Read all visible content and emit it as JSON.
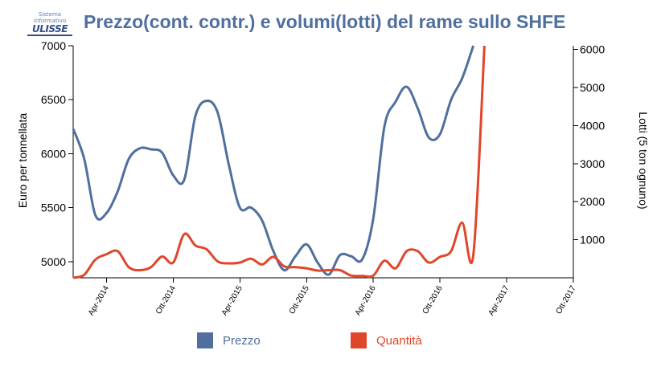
{
  "logo": {
    "line1": "Sistema",
    "line2": "Informativo",
    "line3": "ULISSE"
  },
  "chart_data": {
    "type": "line",
    "title": "Prezzo(cont. contr.) e volumi(lotti) del rame sullo SHFE",
    "ylabel": "Euro per tonnellata",
    "y2label": "Lotti (5 ton ognuno)",
    "ylim": [
      4850,
      7000
    ],
    "y2lim": [
      0,
      6100
    ],
    "yticks": [
      5000,
      5500,
      6000,
      6500,
      7000
    ],
    "y2ticks": [
      1000,
      2000,
      3000,
      4000,
      5000,
      6000
    ],
    "xlim": [
      "2014-01",
      "2017-10"
    ],
    "xticks": [
      {
        "x": "2014-04",
        "label": "Apr-2014"
      },
      {
        "x": "2014-10",
        "label": "Ott-2014"
      },
      {
        "x": "2015-04",
        "label": "Apr-2015"
      },
      {
        "x": "2015-10",
        "label": "Ott-2015"
      },
      {
        "x": "2016-04",
        "label": "Apr-2016"
      },
      {
        "x": "2016-10",
        "label": "Ott-2016"
      },
      {
        "x": "2017-04",
        "label": "Apr-2017"
      },
      {
        "x": "2017-10",
        "label": "Ott-2017"
      }
    ],
    "legend_position": "bottom",
    "series": [
      {
        "name": "Prezzo",
        "axis": "left",
        "color": "#4f6f9e",
        "points": [
          [
            "2014-01",
            6230
          ],
          [
            "2014-02",
            5950
          ],
          [
            "2014-03",
            5430
          ],
          [
            "2014-04",
            5450
          ],
          [
            "2014-05",
            5650
          ],
          [
            "2014-06",
            5950
          ],
          [
            "2014-07",
            6050
          ],
          [
            "2014-08",
            6040
          ],
          [
            "2014-09",
            6010
          ],
          [
            "2014-10",
            5800
          ],
          [
            "2014-11",
            5760
          ],
          [
            "2014-12",
            6350
          ],
          [
            "2015-01",
            6490
          ],
          [
            "2015-02",
            6380
          ],
          [
            "2015-03",
            5900
          ],
          [
            "2015-04",
            5500
          ],
          [
            "2015-05",
            5500
          ],
          [
            "2015-06",
            5380
          ],
          [
            "2015-07",
            5100
          ],
          [
            "2015-08",
            4920
          ],
          [
            "2015-09",
            5050
          ],
          [
            "2015-10",
            5160
          ],
          [
            "2015-11",
            4990
          ],
          [
            "2015-12",
            4880
          ],
          [
            "2016-01",
            5060
          ],
          [
            "2016-02",
            5050
          ],
          [
            "2016-03",
            5020
          ],
          [
            "2016-04",
            5400
          ],
          [
            "2016-05",
            6250
          ],
          [
            "2016-06",
            6480
          ],
          [
            "2016-07",
            6620
          ],
          [
            "2016-08",
            6420
          ],
          [
            "2016-09",
            6150
          ],
          [
            "2016-10",
            6180
          ],
          [
            "2016-11",
            6500
          ],
          [
            "2016-12",
            6700
          ],
          [
            "2017-01",
            7000
          ]
        ]
      },
      {
        "name": "Quantità",
        "axis": "right",
        "color": "#e0462a",
        "points": [
          [
            "2014-01",
            0
          ],
          [
            "2014-02",
            80
          ],
          [
            "2014-03",
            480
          ],
          [
            "2014-04",
            620
          ],
          [
            "2014-05",
            700
          ],
          [
            "2014-06",
            280
          ],
          [
            "2014-07",
            200
          ],
          [
            "2014-08",
            280
          ],
          [
            "2014-09",
            560
          ],
          [
            "2014-10",
            400
          ],
          [
            "2014-11",
            1150
          ],
          [
            "2014-12",
            850
          ],
          [
            "2015-01",
            750
          ],
          [
            "2015-02",
            430
          ],
          [
            "2015-03",
            380
          ],
          [
            "2015-04",
            400
          ],
          [
            "2015-05",
            500
          ],
          [
            "2015-06",
            350
          ],
          [
            "2015-07",
            550
          ],
          [
            "2015-08",
            300
          ],
          [
            "2015-09",
            280
          ],
          [
            "2015-10",
            250
          ],
          [
            "2015-11",
            190
          ],
          [
            "2015-12",
            200
          ],
          [
            "2016-01",
            200
          ],
          [
            "2016-02",
            60
          ],
          [
            "2016-03",
            50
          ],
          [
            "2016-04",
            60
          ],
          [
            "2016-05",
            450
          ],
          [
            "2016-06",
            250
          ],
          [
            "2016-07",
            700
          ],
          [
            "2016-08",
            700
          ],
          [
            "2016-09",
            400
          ],
          [
            "2016-10",
            550
          ],
          [
            "2016-11",
            700
          ],
          [
            "2016-12",
            1450
          ],
          [
            "2017-01",
            600
          ],
          [
            "2017-02",
            6100
          ]
        ]
      }
    ]
  }
}
